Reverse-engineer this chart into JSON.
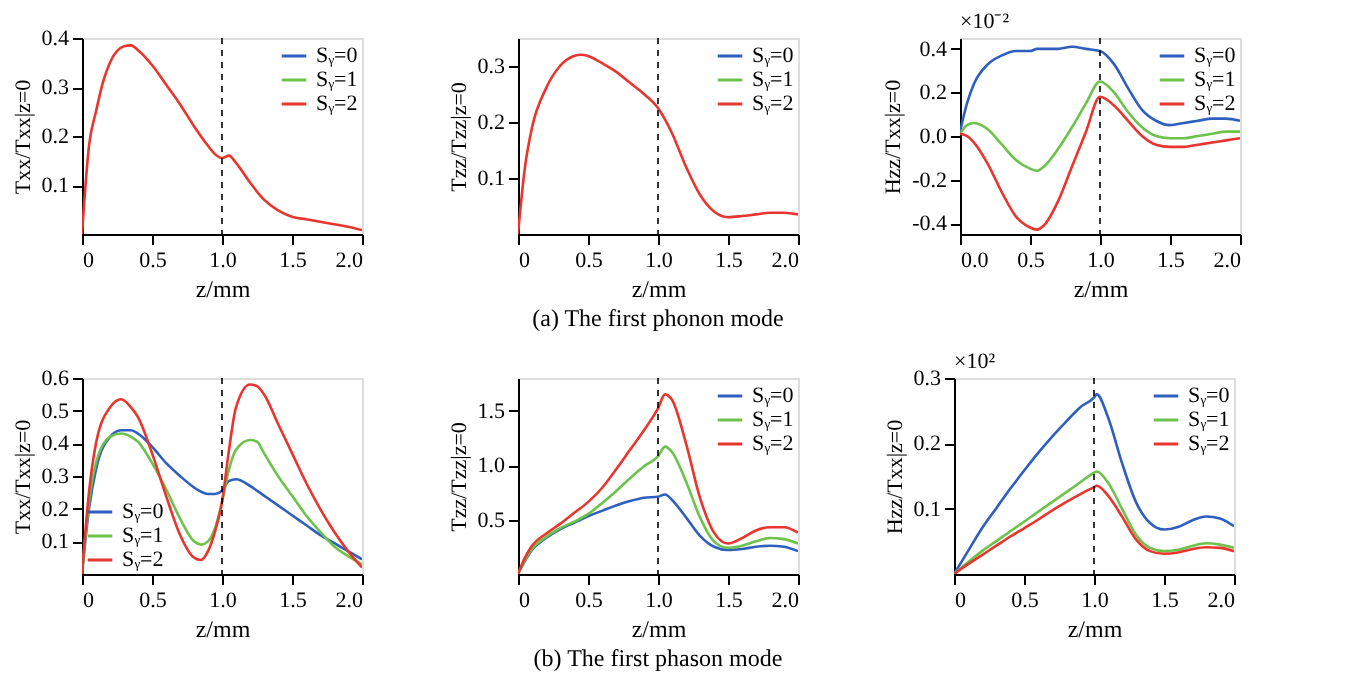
{
  "chart_data": [
    {
      "type": "line",
      "xlabel": "z/mm",
      "ylabel": "Txx/Txx|z=0",
      "xlim": [
        0,
        2
      ],
      "xticks": [
        0,
        0.5,
        {
          "value": 1,
          "label": "1.0"
        },
        1.5,
        {
          "value": 2,
          "label": "2.0"
        }
      ],
      "ylim": [
        0,
        0.4
      ],
      "yticks": [
        0.1,
        0.2,
        0.3,
        0.4
      ],
      "legend": "top right",
      "grid": false,
      "line_style": "solid",
      "marker": "none",
      "x": [
        0,
        0.05,
        0.1,
        0.15,
        0.2,
        0.3,
        0.35,
        0.4,
        0.5,
        0.6,
        0.7,
        0.8,
        0.9,
        0.95,
        1.0,
        1.05,
        1.1,
        1.2,
        1.3,
        1.4,
        1.5,
        1.6,
        1.7,
        1.8,
        1.9,
        2.0
      ],
      "ref_lines": [
        {
          "axis": "x",
          "value": 1,
          "line_style": "dashed"
        }
      ],
      "series": [
        {
          "name": "Sᵧ=0",
          "color": "#2e5fbf",
          "values": [
            null,
            null,
            null,
            null,
            null,
            null,
            null,
            null,
            null,
            null,
            null,
            null,
            null,
            null,
            null,
            null,
            null,
            null,
            null,
            null,
            null,
            null,
            null,
            null,
            null,
            null
          ]
        },
        {
          "name": "Sᵧ=1",
          "color": "#6cc24a",
          "values": [
            null,
            null,
            null,
            null,
            null,
            null,
            null,
            null,
            null,
            null,
            null,
            null,
            null,
            null,
            null,
            null,
            null,
            null,
            null,
            null,
            null,
            null,
            null,
            null,
            null,
            null
          ]
        },
        {
          "name": "Sᵧ=2",
          "color": "#e8352e",
          "values": [
            0,
            0.18,
            0.25,
            0.31,
            0.35,
            0.383,
            0.385,
            0.375,
            0.345,
            0.305,
            0.265,
            0.22,
            0.18,
            0.163,
            0.155,
            0.16,
            0.145,
            0.105,
            0.07,
            0.048,
            0.035,
            0.03,
            0.025,
            0.02,
            0.015,
            0.008
          ]
        }
      ]
    },
    {
      "type": "line",
      "title": "(a) The first phonon mode",
      "xlabel": "z/mm",
      "ylabel": "Tzz/Tzz|z=0",
      "xlim": [
        0,
        2
      ],
      "xticks": [
        0,
        0.5,
        {
          "value": 1,
          "label": "1.0"
        },
        1.5,
        {
          "value": 2,
          "label": "2.0"
        }
      ],
      "ylim": [
        0,
        0.35
      ],
      "yticks": [
        0.1,
        0.2,
        0.3
      ],
      "legend": "top right",
      "grid": false,
      "line_style": "solid",
      "marker": "none",
      "x": [
        0,
        0.05,
        0.1,
        0.2,
        0.3,
        0.4,
        0.45,
        0.5,
        0.6,
        0.7,
        0.8,
        0.9,
        1.0,
        1.1,
        1.2,
        1.3,
        1.4,
        1.5,
        1.6,
        1.7,
        1.8,
        1.9,
        2.0
      ],
      "ref_lines": [
        {
          "axis": "x",
          "value": 1,
          "line_style": "dashed"
        }
      ],
      "series": [
        {
          "name": "Sᵧ=0",
          "color": "#2e5fbf",
          "values": [
            null,
            null,
            null,
            null,
            null,
            null,
            null,
            null,
            null,
            null,
            null,
            null,
            null,
            null,
            null,
            null,
            null,
            null,
            null,
            null,
            null,
            null,
            null
          ]
        },
        {
          "name": "Sᵧ=1",
          "color": "#6cc24a",
          "values": [
            null,
            null,
            null,
            null,
            null,
            null,
            null,
            null,
            null,
            null,
            null,
            null,
            null,
            null,
            null,
            null,
            null,
            null,
            null,
            null,
            null,
            null,
            null
          ]
        },
        {
          "name": "Sᵧ=2",
          "color": "#e8352e",
          "values": [
            0,
            0.12,
            0.19,
            0.26,
            0.3,
            0.318,
            0.32,
            0.318,
            0.305,
            0.29,
            0.27,
            0.25,
            0.225,
            0.18,
            0.12,
            0.07,
            0.04,
            0.03,
            0.032,
            0.035,
            0.038,
            0.038,
            0.035
          ]
        }
      ]
    },
    {
      "type": "line",
      "xlabel": "z/mm",
      "ylabel": "Hzz/Txx|z=0",
      "annotations": [
        "×10⁻²"
      ],
      "xlim": [
        0,
        2
      ],
      "xticks": [
        {
          "value": 0,
          "label": "0.0"
        },
        0.5,
        {
          "value": 1,
          "label": "1.0"
        },
        1.5,
        {
          "value": 2,
          "label": "2.0"
        }
      ],
      "ylim": [
        -0.45,
        0.45
      ],
      "yticks": [
        -0.4,
        -0.2,
        {
          "value": 0,
          "label": "0.0"
        },
        0.2,
        0.4
      ],
      "legend": "top right",
      "grid": false,
      "line_style": "solid",
      "marker": "none",
      "x": [
        0,
        0.05,
        0.1,
        0.2,
        0.3,
        0.4,
        0.5,
        0.55,
        0.6,
        0.7,
        0.8,
        0.9,
        1.0,
        1.1,
        1.2,
        1.3,
        1.4,
        1.5,
        1.6,
        1.7,
        1.8,
        1.9,
        2.0
      ],
      "ref_lines": [
        {
          "axis": "x",
          "value": 1,
          "line_style": "dashed"
        }
      ],
      "series": [
        {
          "name": "Sᵧ=0",
          "color": "#2e5fbf",
          "values": [
            0.02,
            0.15,
            0.24,
            0.33,
            0.37,
            0.39,
            0.39,
            0.4,
            0.4,
            0.4,
            0.41,
            0.4,
            0.39,
            0.33,
            0.22,
            0.12,
            0.07,
            0.05,
            0.06,
            0.07,
            0.08,
            0.08,
            0.07
          ]
        },
        {
          "name": "Sᵧ=1",
          "color": "#6cc24a",
          "values": [
            0.01,
            0.05,
            0.06,
            0.03,
            -0.04,
            -0.11,
            -0.15,
            -0.16,
            -0.14,
            -0.06,
            0.04,
            0.15,
            0.25,
            0.2,
            0.11,
            0.04,
            0.0,
            -0.01,
            -0.01,
            0.0,
            0.01,
            0.02,
            0.02
          ]
        },
        {
          "name": "Sᵧ=2",
          "color": "#e8352e",
          "values": [
            0.01,
            0.0,
            -0.03,
            -0.13,
            -0.26,
            -0.37,
            -0.42,
            -0.43,
            -0.41,
            -0.3,
            -0.14,
            0.02,
            0.18,
            0.14,
            0.07,
            0.0,
            -0.04,
            -0.05,
            -0.05,
            -0.04,
            -0.03,
            -0.02,
            -0.01
          ]
        }
      ]
    },
    {
      "type": "line",
      "xlabel": "z/mm",
      "ylabel": "Txx/Txx|z=0",
      "xlim": [
        0,
        2
      ],
      "xticks": [
        0,
        0.5,
        {
          "value": 1,
          "label": "1.0"
        },
        1.5,
        {
          "value": 2,
          "label": "2.0"
        }
      ],
      "ylim": [
        0,
        0.6
      ],
      "yticks": [
        0.1,
        0.2,
        0.3,
        0.4,
        0.5,
        0.6
      ],
      "legend": "bottom left",
      "grid": false,
      "line_style": "solid",
      "marker": "none",
      "x": [
        0,
        0.05,
        0.1,
        0.2,
        0.28,
        0.35,
        0.4,
        0.5,
        0.6,
        0.7,
        0.8,
        0.85,
        0.9,
        0.95,
        1.0,
        1.05,
        1.1,
        1.2,
        1.25,
        1.3,
        1.4,
        1.5,
        1.6,
        1.7,
        1.8,
        1.9,
        2.0
      ],
      "ref_lines": [
        {
          "axis": "x",
          "value": 1,
          "line_style": "dashed"
        }
      ],
      "series": [
        {
          "name": "Sᵧ=0",
          "color": "#2e5fbf",
          "values": [
            0,
            0.2,
            0.32,
            0.42,
            0.44,
            0.44,
            0.43,
            0.39,
            0.34,
            0.3,
            0.265,
            0.252,
            0.245,
            0.245,
            0.255,
            0.285,
            0.29,
            0.27,
            0.255,
            0.24,
            0.21,
            0.18,
            0.15,
            0.12,
            0.095,
            0.07,
            0.045
          ]
        },
        {
          "name": "Sᵧ=1",
          "color": "#6cc24a",
          "values": [
            0,
            0.22,
            0.34,
            0.42,
            0.43,
            0.42,
            0.405,
            0.34,
            0.26,
            0.17,
            0.1,
            0.09,
            0.1,
            0.14,
            0.22,
            0.32,
            0.38,
            0.41,
            0.405,
            0.37,
            0.3,
            0.24,
            0.18,
            0.13,
            0.085,
            0.055,
            0.03
          ]
        },
        {
          "name": "Sᵧ=2",
          "color": "#e8352e",
          "values": [
            0,
            0.25,
            0.4,
            0.51,
            0.535,
            0.51,
            0.48,
            0.37,
            0.24,
            0.12,
            0.05,
            0.043,
            0.07,
            0.13,
            0.22,
            0.38,
            0.51,
            0.58,
            0.575,
            0.55,
            0.46,
            0.37,
            0.28,
            0.2,
            0.13,
            0.07,
            0.02
          ]
        }
      ]
    },
    {
      "type": "line",
      "title": "(b) The first phason mode",
      "xlabel": "z/mm",
      "ylabel": "Tzz/Tzz|z=0",
      "xlim": [
        0,
        2
      ],
      "xticks": [
        0,
        0.5,
        {
          "value": 1,
          "label": "1.0"
        },
        1.5,
        {
          "value": 2,
          "label": "2.0"
        }
      ],
      "ylim": [
        0,
        1.8
      ],
      "yticks": [
        0.5,
        {
          "value": 1,
          "label": "1.0"
        },
        1.5
      ],
      "legend": "top right",
      "grid": false,
      "line_style": "solid",
      "marker": "none",
      "x": [
        0,
        0.05,
        0.1,
        0.2,
        0.3,
        0.4,
        0.5,
        0.6,
        0.7,
        0.8,
        0.9,
        1.0,
        1.05,
        1.1,
        1.2,
        1.3,
        1.4,
        1.5,
        1.6,
        1.7,
        1.8,
        1.9,
        2.0
      ],
      "ref_lines": [
        {
          "axis": "x",
          "value": 1,
          "line_style": "dashed"
        }
      ],
      "series": [
        {
          "name": "Sᵧ=0",
          "color": "#2e5fbf",
          "values": [
            0,
            0.12,
            0.22,
            0.33,
            0.41,
            0.47,
            0.53,
            0.58,
            0.63,
            0.67,
            0.7,
            0.71,
            0.73,
            0.68,
            0.52,
            0.35,
            0.25,
            0.22,
            0.23,
            0.25,
            0.26,
            0.25,
            0.21
          ]
        },
        {
          "name": "Sᵧ=1",
          "color": "#6cc24a",
          "values": [
            0,
            0.13,
            0.23,
            0.34,
            0.42,
            0.48,
            0.55,
            0.65,
            0.76,
            0.88,
            0.99,
            1.08,
            1.17,
            1.12,
            0.85,
            0.52,
            0.3,
            0.24,
            0.26,
            0.3,
            0.33,
            0.32,
            0.28
          ]
        },
        {
          "name": "Sᵧ=2",
          "color": "#e8352e",
          "values": [
            0,
            0.15,
            0.26,
            0.37,
            0.46,
            0.56,
            0.66,
            0.79,
            0.96,
            1.14,
            1.32,
            1.52,
            1.65,
            1.6,
            1.2,
            0.7,
            0.38,
            0.28,
            0.33,
            0.4,
            0.43,
            0.43,
            0.38
          ]
        }
      ]
    },
    {
      "type": "line",
      "xlabel": "z/mm",
      "ylabel": "Hzz/Txx|z=0",
      "annotations": [
        "×10²"
      ],
      "xlim": [
        0,
        2
      ],
      "xticks": [
        0,
        0.5,
        {
          "value": 1,
          "label": "1.0"
        },
        1.5,
        {
          "value": 2,
          "label": "2.0"
        }
      ],
      "ylim": [
        0,
        0.3
      ],
      "yticks": [
        0.1,
        0.2,
        0.3
      ],
      "legend": "top right",
      "grid": false,
      "line_style": "solid",
      "marker": "none",
      "x": [
        0,
        0.1,
        0.2,
        0.3,
        0.4,
        0.5,
        0.6,
        0.7,
        0.8,
        0.9,
        1.0,
        1.02,
        1.1,
        1.2,
        1.3,
        1.4,
        1.5,
        1.6,
        1.7,
        1.8,
        1.9,
        2.0
      ],
      "ref_lines": [
        {
          "axis": "x",
          "value": 1,
          "line_style": "dashed"
        }
      ],
      "series": [
        {
          "name": "Sᵧ=0",
          "color": "#2e5fbf",
          "values": [
            0,
            0.035,
            0.07,
            0.1,
            0.13,
            0.158,
            0.185,
            0.21,
            0.233,
            0.255,
            0.27,
            0.275,
            0.24,
            0.17,
            0.11,
            0.078,
            0.068,
            0.072,
            0.082,
            0.088,
            0.085,
            0.073
          ]
        },
        {
          "name": "Sᵧ=1",
          "color": "#6cc24a",
          "values": [
            0,
            0.018,
            0.035,
            0.05,
            0.065,
            0.08,
            0.095,
            0.11,
            0.125,
            0.14,
            0.155,
            0.157,
            0.14,
            0.1,
            0.06,
            0.04,
            0.035,
            0.037,
            0.043,
            0.047,
            0.045,
            0.04
          ]
        },
        {
          "name": "Sᵧ=2",
          "color": "#e8352e",
          "values": [
            0,
            0.015,
            0.029,
            0.043,
            0.057,
            0.07,
            0.083,
            0.097,
            0.11,
            0.122,
            0.133,
            0.135,
            0.12,
            0.088,
            0.053,
            0.035,
            0.031,
            0.033,
            0.038,
            0.041,
            0.04,
            0.035
          ]
        }
      ]
    }
  ]
}
